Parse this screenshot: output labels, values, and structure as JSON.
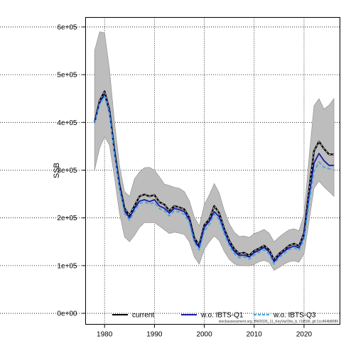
{
  "chart_data": {
    "type": "line",
    "ylabel": "SSB",
    "xlim": [
      1976.2,
      2027.2
    ],
    "ylim": [
      -23000,
      620000
    ],
    "x_ticks": [
      1980,
      1990,
      2000,
      2010,
      2020
    ],
    "y_ticks": [
      0,
      100000,
      200000,
      300000,
      400000,
      500000,
      600000
    ],
    "y_tick_labels": [
      "0e+00",
      "1e+05",
      "2e+05",
      "3e+05",
      "4e+05",
      "5e+05",
      "6e+05"
    ],
    "grid": true,
    "legend_position": "bottom",
    "watermark": "stockassessment.org, BW2026_11_KeyVarObs_b, r19599, git:1cc464b8089",
    "x": [
      1978,
      1979,
      1980,
      1981,
      1982,
      1983,
      1984,
      1985,
      1986,
      1987,
      1988,
      1989,
      1990,
      1991,
      1992,
      1993,
      1994,
      1995,
      1996,
      1997,
      1998,
      1999,
      2000,
      2001,
      2002,
      2003,
      2004,
      2005,
      2006,
      2007,
      2008,
      2009,
      2010,
      2011,
      2012,
      2013,
      2014,
      2015,
      2016,
      2017,
      2018,
      2019,
      2020,
      2021,
      2022,
      2023,
      2024,
      2025,
      2026
    ],
    "band": {
      "upper": [
        550000,
        590000,
        588000,
        510000,
        400000,
        310000,
        255000,
        245000,
        282000,
        296000,
        305000,
        306000,
        300000,
        286000,
        271000,
        268000,
        264000,
        262000,
        255000,
        236000,
        202000,
        183000,
        228000,
        248000,
        272000,
        252000,
        216000,
        188000,
        170000,
        161000,
        162000,
        159000,
        167000,
        171000,
        176000,
        168000,
        150000,
        160000,
        168000,
        175000,
        177000,
        173000,
        208000,
        326000,
        435000,
        450000,
        428000,
        436000,
        450000
      ],
      "lower": [
        300000,
        346000,
        370000,
        352000,
        284000,
        210000,
        160000,
        150000,
        163000,
        180000,
        190000,
        190000,
        190000,
        183000,
        175000,
        167000,
        170000,
        168000,
        165000,
        150000,
        118000,
        103000,
        134000,
        150000,
        162000,
        152000,
        130000,
        113000,
        104000,
        100000,
        100000,
        99000,
        103000,
        108000,
        111000,
        107000,
        90000,
        96000,
        103000,
        108000,
        110000,
        107000,
        125000,
        192000,
        262000,
        277000,
        265000,
        255000,
        245000
      ]
    },
    "series": [
      {
        "name": "current",
        "color": "#000000",
        "dash": "solid",
        "values": [
          400000,
          445000,
          465000,
          425000,
          340000,
          270000,
          220000,
          205000,
          225000,
          245000,
          249000,
          245000,
          248000,
          233000,
          228000,
          215000,
          225000,
          222000,
          218000,
          200000,
          158000,
          143000,
          185000,
          197000,
          225000,
          210000,
          177000,
          152000,
          135000,
          125000,
          127000,
          121000,
          131000,
          136000,
          142000,
          133000,
          112000,
          125000,
          133000,
          142000,
          146000,
          141000,
          168000,
          258000,
          340000,
          360000,
          345000,
          333000,
          333000
        ]
      },
      {
        "name": "w.o. IBTS-Q1",
        "color": "#1a1aa6",
        "dash": "solid",
        "values": [
          400000,
          440000,
          458000,
          420000,
          336000,
          266000,
          215000,
          200000,
          220000,
          235000,
          238000,
          234000,
          238000,
          225000,
          220000,
          210000,
          220000,
          217000,
          213000,
          196000,
          153000,
          138000,
          180000,
          193000,
          213000,
          202000,
          173000,
          147000,
          130000,
          121000,
          122000,
          118000,
          127000,
          132000,
          138000,
          129000,
          108000,
          121000,
          130000,
          137000,
          141000,
          137000,
          162000,
          245000,
          315000,
          335000,
          320000,
          310000,
          310000
        ]
      },
      {
        "name": "w.o. IBTS-Q3",
        "color": "#3fa7e0",
        "dash": "dashed",
        "values": [
          398000,
          438000,
          455000,
          418000,
          333000,
          262000,
          210000,
          195000,
          214000,
          230000,
          233000,
          229000,
          232000,
          219000,
          215000,
          204000,
          215000,
          212000,
          207000,
          190000,
          148000,
          133000,
          172000,
          186000,
          208000,
          196000,
          167000,
          142000,
          125000,
          116000,
          118000,
          113000,
          122000,
          128000,
          133000,
          124000,
          103000,
          117000,
          125000,
          133000,
          137000,
          132000,
          155000,
          232000,
          297000,
          317000,
          306000,
          303000,
          300000
        ]
      }
    ]
  }
}
